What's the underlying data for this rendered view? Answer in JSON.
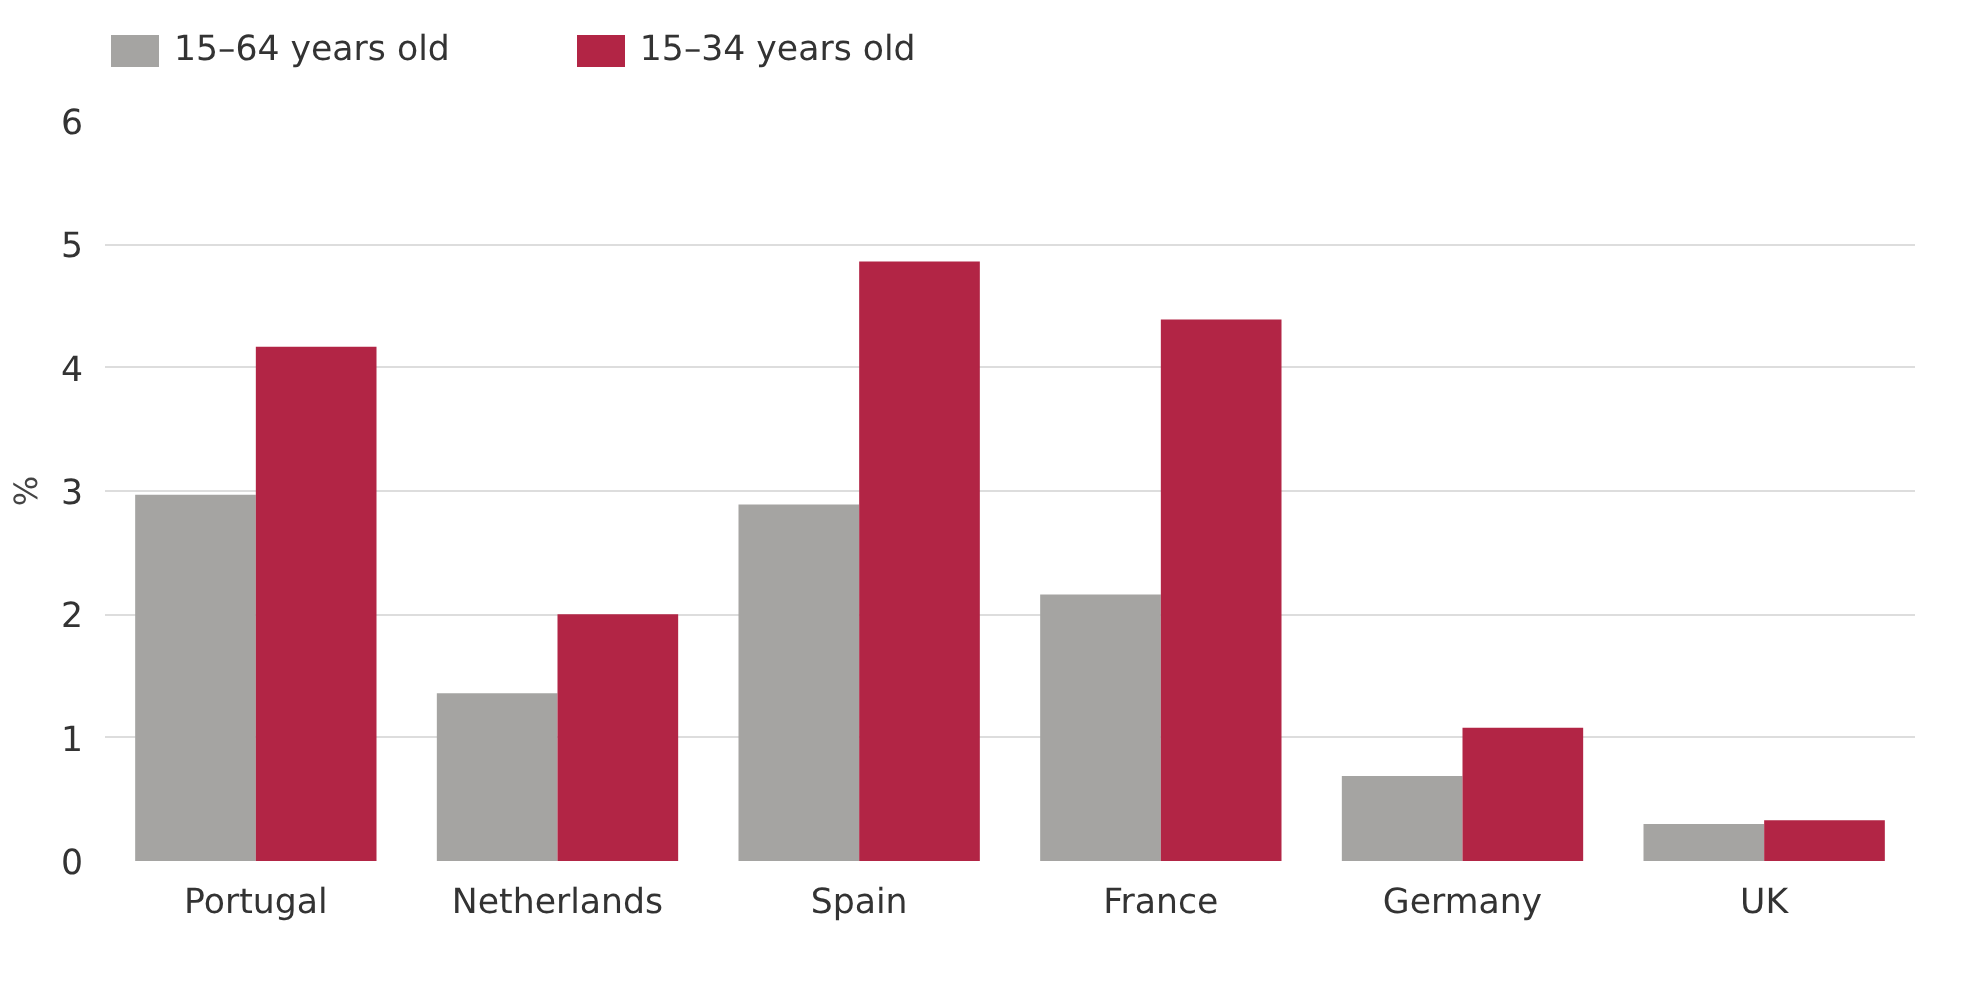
{
  "chart_data": {
    "type": "bar",
    "ylabel": "%",
    "categories": [
      "Portugal",
      "Netherlands",
      "Spain",
      "France",
      "Germany",
      "UK"
    ],
    "series": [
      {
        "name": "15–64 years old",
        "color": "#a5a4a2",
        "values": [
          2.97,
          1.36,
          2.89,
          2.16,
          0.69,
          0.3
        ]
      },
      {
        "name": "15–34 years old",
        "color": "#b22545",
        "values": [
          4.17,
          2.0,
          4.86,
          4.39,
          1.08,
          0.33
        ]
      }
    ],
    "ylim": [
      0,
      6
    ],
    "yticks": [
      0,
      1,
      2,
      3,
      4,
      5,
      6
    ],
    "grid": "y",
    "legend": "top left"
  }
}
